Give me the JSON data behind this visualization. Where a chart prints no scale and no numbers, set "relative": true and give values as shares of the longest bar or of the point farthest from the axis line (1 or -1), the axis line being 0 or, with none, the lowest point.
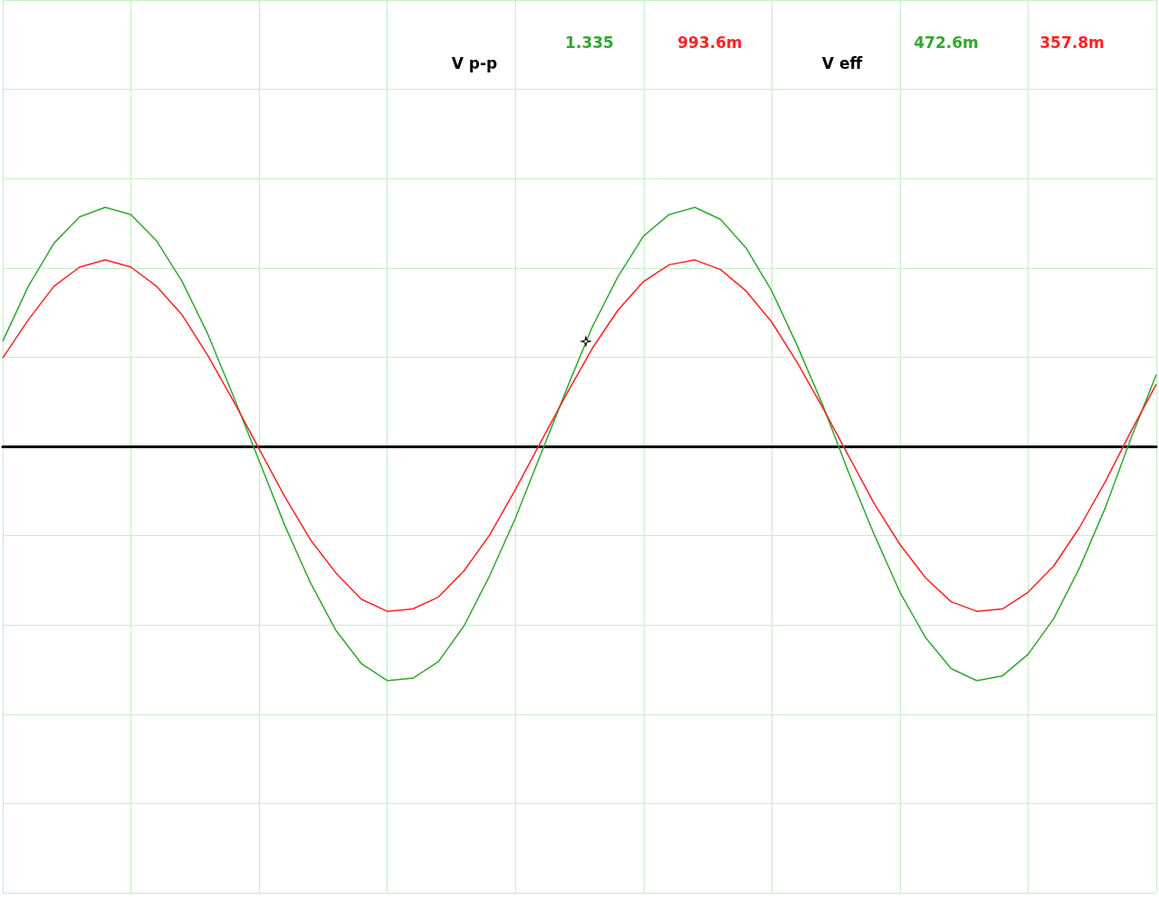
{
  "chart_data": {
    "type": "line",
    "relative": true,
    "grid": true,
    "marker": "none",
    "line_style": "solid",
    "categories": [
      null,
      null,
      null,
      null,
      null,
      null,
      null,
      null,
      null,
      null,
      null,
      null,
      null,
      null,
      null,
      null,
      null,
      null,
      null,
      null,
      null,
      null,
      null,
      null,
      null,
      null,
      null,
      null,
      null,
      null,
      null,
      null,
      null,
      null,
      null,
      null,
      null,
      null,
      null,
      null,
      null,
      null,
      null,
      null,
      null,
      null
    ],
    "series": [
      {
        "color": "#2eaa2e",
        "values": [
          0.44,
          0.67,
          0.85,
          0.96,
          1.0,
          0.97,
          0.86,
          0.69,
          0.47,
          0.21,
          -0.06,
          -0.33,
          -0.57,
          -0.77,
          -0.91,
          -0.98,
          -0.97,
          -0.9,
          -0.75,
          -0.54,
          -0.3,
          -0.03,
          0.24,
          0.5,
          0.71,
          0.88,
          0.97,
          1.0,
          0.95,
          0.83,
          0.65,
          0.42,
          0.17,
          -0.11,
          -0.37,
          -0.61,
          -0.8,
          -0.93,
          -0.98,
          -0.96,
          -0.87,
          -0.72,
          -0.51,
          -0.26,
          0.03,
          0.3
        ]
      },
      {
        "color": "#ff2020",
        "values": [
          0.37,
          0.53,
          0.67,
          0.75,
          0.78,
          0.75,
          0.67,
          0.55,
          0.38,
          0.19,
          -0.01,
          -0.21,
          -0.39,
          -0.53,
          -0.64,
          -0.69,
          -0.68,
          -0.63,
          -0.52,
          -0.37,
          -0.18,
          0.02,
          0.22,
          0.41,
          0.57,
          0.69,
          0.76,
          0.78,
          0.74,
          0.65,
          0.52,
          0.35,
          0.16,
          -0.04,
          -0.24,
          -0.41,
          -0.55,
          -0.65,
          -0.69,
          -0.68,
          -0.61,
          -0.5,
          -0.34,
          -0.15,
          0.06,
          0.26
        ]
      }
    ],
    "annotations": [
      "V p-p",
      "1.335",
      "993.6m",
      "V eff",
      "472.6m",
      "357.8m"
    ]
  }
}
